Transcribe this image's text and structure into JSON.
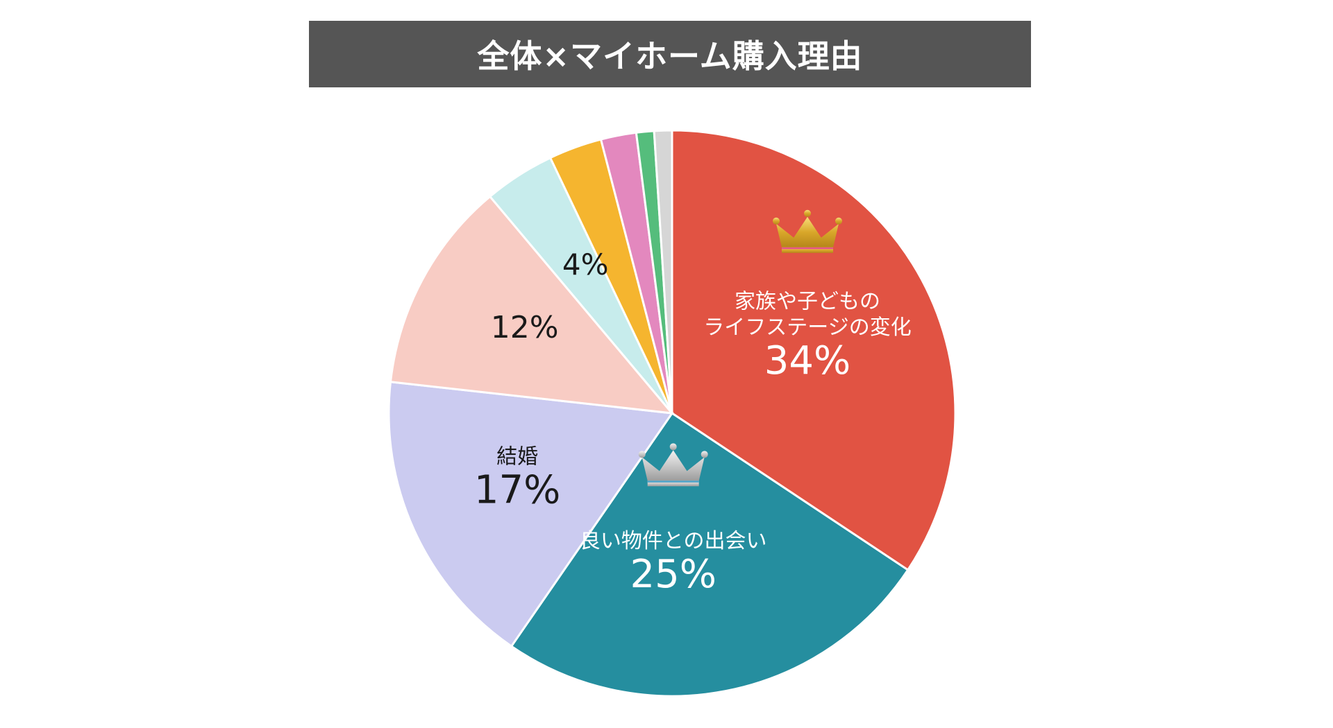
{
  "chart_data": {
    "type": "pie",
    "title": "全体×マイホーム購入理由",
    "start_angle_deg": 0,
    "direction": "clockwise",
    "slices": [
      {
        "name": "家族や子どものライフステージの変化",
        "name_lines": [
          "家族や子どもの",
          "ライフステージの変化"
        ],
        "value": 34,
        "label": "34%",
        "color": "#E15343",
        "text_color": "#ffffff",
        "crown": "gold"
      },
      {
        "name": "良い物件との出会い",
        "name_lines": [
          "良い物件との出会い"
        ],
        "value": 25,
        "label": "25%",
        "color": "#258E9F",
        "text_color": "#ffffff",
        "crown": "silver"
      },
      {
        "name": "結婚",
        "name_lines": [
          "結婚"
        ],
        "value": 17,
        "label": "17%",
        "color": "#CBCBF0",
        "text_color": "#1a1a1a",
        "crown": null
      },
      {
        "name": "",
        "name_lines": [],
        "value": 12,
        "label": "12%",
        "color": "#F8CCC4",
        "text_color": "#1a1a1a",
        "crown": null
      },
      {
        "name": "",
        "name_lines": [],
        "value": 4,
        "label": "4%",
        "color": "#C7ECEC",
        "text_color": "#1a1a1a",
        "crown": null
      },
      {
        "name": "",
        "name_lines": [],
        "value": 3,
        "label": "",
        "color": "#F5B52F",
        "text_color": "#1a1a1a",
        "crown": null
      },
      {
        "name": "",
        "name_lines": [],
        "value": 2,
        "label": "",
        "color": "#E388BE",
        "text_color": "#1a1a1a",
        "crown": null
      },
      {
        "name": "",
        "name_lines": [],
        "value": 1,
        "label": "",
        "color": "#55BD7C",
        "text_color": "#1a1a1a",
        "crown": null
      },
      {
        "name": "",
        "name_lines": [],
        "value": 1,
        "label": "",
        "color": "#D6D6D6",
        "text_color": "#1a1a1a",
        "crown": null
      }
    ]
  }
}
